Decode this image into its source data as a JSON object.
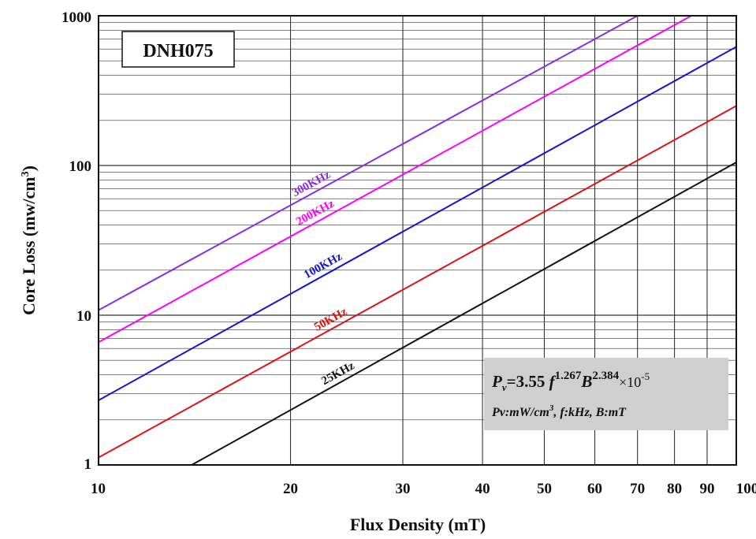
{
  "chart_data": {
    "type": "line",
    "title": "DNH075",
    "xlabel": "Flux Density (mT)",
    "ylabel": "Core Loss (mw/cm³)",
    "ylabel_main": "Core Loss (mw/cm",
    "ylabel_sup": "3",
    "ylabel_close": ")",
    "x_scale": "log",
    "y_scale": "log",
    "xlim": [
      10,
      100
    ],
    "ylim": [
      1,
      1000
    ],
    "x_ticks": [
      {
        "value": 10,
        "label": "10"
      },
      {
        "value": 20,
        "label": "20"
      },
      {
        "value": 30,
        "label": "30"
      },
      {
        "value": 40,
        "label": "40"
      },
      {
        "value": 50,
        "label": "50"
      },
      {
        "value": 60,
        "label": "60"
      },
      {
        "value": 70,
        "label": "70"
      },
      {
        "value": 80,
        "label": "80"
      },
      {
        "value": 90,
        "label": "90"
      },
      {
        "value": 100,
        "label": "100"
      }
    ],
    "y_ticks": [
      {
        "value": 1,
        "label": "1"
      },
      {
        "value": 10,
        "label": "10"
      },
      {
        "value": 100,
        "label": "100"
      },
      {
        "value": 1000,
        "label": "1000"
      }
    ],
    "grid": true,
    "series": [
      {
        "name": "300KHz",
        "frequency": 300,
        "color": "#8a2be2",
        "label_x": 20.5,
        "x": [
          10,
          70
        ],
        "y": [
          10.8,
          1000
        ]
      },
      {
        "name": "200KHz",
        "frequency": 200,
        "color": "#ff00ff",
        "label_x": 20.8,
        "x": [
          10,
          85
        ],
        "y": [
          6.6,
          1000
        ]
      },
      {
        "name": "100KHz",
        "frequency": 100,
        "color": "#1414d2",
        "label_x": 21.4,
        "x": [
          10,
          100
        ],
        "y": [
          2.7,
          620
        ]
      },
      {
        "name": "50KHz",
        "frequency": 50,
        "color": "#e01010",
        "label_x": 22.2,
        "x": [
          10,
          100
        ],
        "y": [
          1.12,
          250
        ]
      },
      {
        "name": "25KHz",
        "frequency": 25,
        "color": "#111111",
        "label_x": 22.8,
        "x": [
          14,
          100
        ],
        "y": [
          1,
          105
        ]
      }
    ],
    "legend": "inline labels on lines",
    "annotation": {
      "pv_symbol": "P",
      "pv_sub": "v",
      "formula_coef": "=3.55 ",
      "f_symbol": "f",
      "f_exp": "1.267",
      "b_symbol": "B",
      "b_exp": "2.384",
      "times_ten": "×10",
      "ten_exp": "-5",
      "units_part1": "Pv:mW/cm",
      "units_sup": "3",
      "units_part2": ", f:kHz, B:mT"
    },
    "colors": {
      "grid": "#333333",
      "annotation_bg": "#cfcfcf"
    }
  }
}
